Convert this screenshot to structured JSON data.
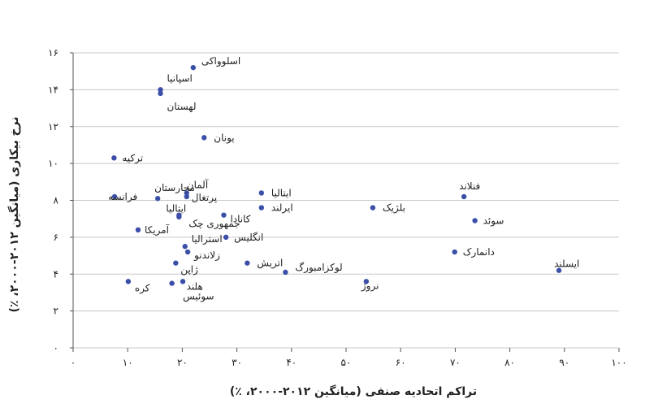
{
  "chart_data": {
    "type": "scatter",
    "xlabel": "تراکم اتحادیه صنفی (میانگین ۲۰۱۲-۲۰۰۰، ٪)",
    "ylabel": "نرخ بیکاری (میانگین ۲۰۱۲-۲۰۰۰، ٪)",
    "xlim": [
      0,
      100
    ],
    "ylim": [
      0,
      16
    ],
    "x_ticks": [
      0,
      10,
      20,
      30,
      40,
      50,
      60,
      70,
      80,
      90,
      100
    ],
    "x_tick_labels": [
      "۰",
      "۱۰",
      "۲۰",
      "۳۰",
      "۴۰",
      "۵۰",
      "۶۰",
      "۷۰",
      "۸۰",
      "۹۰",
      "۱۰۰"
    ],
    "y_ticks": [
      0,
      2,
      4,
      6,
      8,
      10,
      12,
      14,
      16
    ],
    "y_tick_labels": [
      "۰",
      "۲",
      "۴",
      "۶",
      "۸",
      "۱۰",
      "۱۲",
      "۱۴",
      "۱۶"
    ],
    "grid": true,
    "marker_color": "#3b4fa8",
    "points": [
      {
        "label": "اسلوواکی",
        "x": 22,
        "y": 15.2
      },
      {
        "label": "اسپانیا",
        "x": 16,
        "y": 14
      },
      {
        "label": "لهستان",
        "x": 16,
        "y": 13.8
      },
      {
        "label": "یونان",
        "x": 24,
        "y": 11.4
      },
      {
        "label": "ترکیه",
        "x": 7.5,
        "y": 10.3
      },
      {
        "label": "آلمان",
        "x": 20.8,
        "y": 8.4
      },
      {
        "label": "مجارستان",
        "x": 15.5,
        "y": 8.1
      },
      {
        "label": "پرتغال",
        "x": 20.8,
        "y": 8.2
      },
      {
        "label": "فرانسه",
        "x": 7.6,
        "y": 8.2
      },
      {
        "label": "ایتالیا",
        "x": 34.5,
        "y": 8.4
      },
      {
        "label": "ایرلند",
        "x": 34.5,
        "y": 7.6
      },
      {
        "label": "کانادا",
        "x": 27.6,
        "y": 7.2
      },
      {
        "label": "ایتالیا",
        "x": 19.4,
        "y": 7.2
      },
      {
        "label": "جمهوری چک",
        "x": 19.4,
        "y": 7.1
      },
      {
        "label": "آمریکا",
        "x": 11.9,
        "y": 6.4
      },
      {
        "label": "انگلیس",
        "x": 28,
        "y": 6
      },
      {
        "label": "استرالیا",
        "x": 20.5,
        "y": 5.5
      },
      {
        "label": "زلاندنو",
        "x": 21,
        "y": 5.2
      },
      {
        "label": "ژاپن",
        "x": 18.8,
        "y": 4.6
      },
      {
        "label": "اتریش",
        "x": 31.9,
        "y": 4.6
      },
      {
        "label": "لوکزامبورگ",
        "x": 38.9,
        "y": 4.1
      },
      {
        "label": "کره",
        "x": 10.1,
        "y": 3.6
      },
      {
        "label": "هلند",
        "x": 18.1,
        "y": 3.5
      },
      {
        "label": "سوئیس",
        "x": 20.1,
        "y": 3.6
      },
      {
        "label": "نروژ",
        "x": 53.7,
        "y": 3.6
      },
      {
        "label": "بلژیک",
        "x": 54.9,
        "y": 7.6
      },
      {
        "label": "فنلاند",
        "x": 71.6,
        "y": 8.2
      },
      {
        "label": "سوئد",
        "x": 73.6,
        "y": 6.9
      },
      {
        "label": "دانمارک",
        "x": 69.9,
        "y": 5.2
      },
      {
        "label": "ایسلند",
        "x": 89,
        "y": 4.2
      }
    ]
  }
}
